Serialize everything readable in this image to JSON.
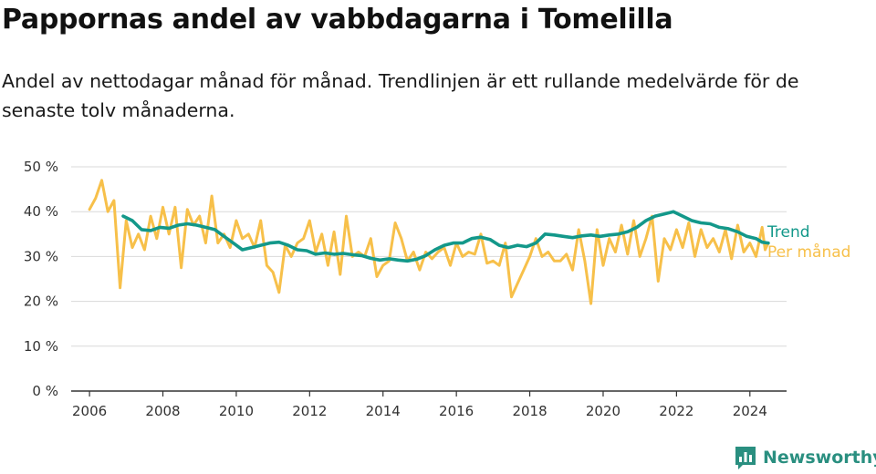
{
  "title": "Pappornas andel av vabbdagarna i Tomelilla",
  "subtitle": "Andel av nettodagar månad för månad. Trendlinjen är ett rullande medelvärde för de senaste tolv månaderna.",
  "brand": {
    "name": "Newsworthy",
    "logo_icon": "bar-chart-speech-bubble-icon",
    "color": "#2a8f80"
  },
  "chart_data": {
    "type": "line",
    "xlabel": "",
    "ylabel": "",
    "x_ticks": [
      "2006",
      "2008",
      "2010",
      "2012",
      "2014",
      "2016",
      "2018",
      "2020",
      "2022",
      "2024"
    ],
    "y_ticks": [
      "0 %",
      "10 %",
      "20 %",
      "30 %",
      "40 %",
      "50 %"
    ],
    "ylim": [
      0,
      50
    ],
    "xlim": [
      "2005-07",
      "2025-01"
    ],
    "grid": true,
    "legend": "labels at right end of lines",
    "series": [
      {
        "name": "Per månad",
        "color": "#f7c04a",
        "points": [
          [
            "2006-01",
            40.5
          ],
          [
            "2006-03",
            43
          ],
          [
            "2006-05",
            47
          ],
          [
            "2006-07",
            40
          ],
          [
            "2006-09",
            42.5
          ],
          [
            "2006-11",
            23
          ],
          [
            "2007-01",
            38
          ],
          [
            "2007-03",
            32
          ],
          [
            "2007-05",
            35
          ],
          [
            "2007-07",
            31.5
          ],
          [
            "2007-09",
            39
          ],
          [
            "2007-11",
            34
          ],
          [
            "2008-01",
            41
          ],
          [
            "2008-03",
            35
          ],
          [
            "2008-05",
            41
          ],
          [
            "2008-07",
            27.5
          ],
          [
            "2008-09",
            40.5
          ],
          [
            "2008-11",
            37
          ],
          [
            "2009-01",
            39
          ],
          [
            "2009-03",
            33
          ],
          [
            "2009-05",
            43.5
          ],
          [
            "2009-07",
            33
          ],
          [
            "2009-09",
            35
          ],
          [
            "2009-11",
            32
          ],
          [
            "2010-01",
            38
          ],
          [
            "2010-03",
            34
          ],
          [
            "2010-05",
            35
          ],
          [
            "2010-07",
            32
          ],
          [
            "2010-09",
            38
          ],
          [
            "2010-11",
            28
          ],
          [
            "2011-01",
            26.5
          ],
          [
            "2011-03",
            22
          ],
          [
            "2011-05",
            32.5
          ],
          [
            "2011-07",
            30
          ],
          [
            "2011-09",
            33
          ],
          [
            "2011-11",
            34
          ],
          [
            "2012-01",
            38
          ],
          [
            "2012-03",
            31
          ],
          [
            "2012-05",
            35
          ],
          [
            "2012-07",
            28
          ],
          [
            "2012-09",
            35.5
          ],
          [
            "2012-11",
            26
          ],
          [
            "2013-01",
            39
          ],
          [
            "2013-03",
            30
          ],
          [
            "2013-05",
            31
          ],
          [
            "2013-07",
            30
          ],
          [
            "2013-09",
            34
          ],
          [
            "2013-11",
            25.5
          ],
          [
            "2014-01",
            28
          ],
          [
            "2014-03",
            29
          ],
          [
            "2014-05",
            37.5
          ],
          [
            "2014-07",
            34
          ],
          [
            "2014-09",
            29
          ],
          [
            "2014-11",
            31
          ],
          [
            "2015-01",
            27
          ],
          [
            "2015-03",
            31
          ],
          [
            "2015-05",
            29.5
          ],
          [
            "2015-07",
            31
          ],
          [
            "2015-09",
            32
          ],
          [
            "2015-11",
            28
          ],
          [
            "2016-01",
            33
          ],
          [
            "2016-03",
            30
          ],
          [
            "2016-05",
            31
          ],
          [
            "2016-07",
            30.5
          ],
          [
            "2016-09",
            35
          ],
          [
            "2016-11",
            28.5
          ],
          [
            "2017-01",
            29
          ],
          [
            "2017-03",
            28
          ],
          [
            "2017-05",
            33
          ],
          [
            "2017-07",
            21
          ],
          [
            "2017-09",
            24
          ],
          [
            "2017-11",
            27
          ],
          [
            "2018-01",
            30
          ],
          [
            "2018-03",
            34
          ],
          [
            "2018-05",
            30
          ],
          [
            "2018-07",
            31
          ],
          [
            "2018-09",
            29
          ],
          [
            "2018-11",
            29
          ],
          [
            "2019-01",
            30.5
          ],
          [
            "2019-03",
            27
          ],
          [
            "2019-05",
            36
          ],
          [
            "2019-07",
            29
          ],
          [
            "2019-09",
            19.5
          ],
          [
            "2019-11",
            36
          ],
          [
            "2020-01",
            28
          ],
          [
            "2020-03",
            34
          ],
          [
            "2020-05",
            31
          ],
          [
            "2020-07",
            37
          ],
          [
            "2020-09",
            30.5
          ],
          [
            "2020-11",
            38
          ],
          [
            "2021-01",
            30
          ],
          [
            "2021-03",
            34
          ],
          [
            "2021-05",
            39
          ],
          [
            "2021-07",
            24.5
          ],
          [
            "2021-09",
            34
          ],
          [
            "2021-11",
            31.5
          ],
          [
            "2022-01",
            36
          ],
          [
            "2022-03",
            32
          ],
          [
            "2022-05",
            37.5
          ],
          [
            "2022-07",
            30
          ],
          [
            "2022-09",
            36
          ],
          [
            "2022-11",
            32
          ],
          [
            "2023-01",
            34
          ],
          [
            "2023-03",
            31
          ],
          [
            "2023-05",
            36
          ],
          [
            "2023-07",
            29.5
          ],
          [
            "2023-09",
            37
          ],
          [
            "2023-11",
            31
          ],
          [
            "2024-01",
            33
          ],
          [
            "2024-03",
            30
          ],
          [
            "2024-05",
            36.5
          ],
          [
            "2024-06",
            31.5
          ],
          [
            "2024-07",
            33
          ]
        ]
      },
      {
        "name": "Trend",
        "color": "#13988a",
        "points": [
          [
            "2006-12",
            39
          ],
          [
            "2007-03",
            38
          ],
          [
            "2007-06",
            36
          ],
          [
            "2007-09",
            35.8
          ],
          [
            "2007-12",
            36.5
          ],
          [
            "2008-03",
            36.3
          ],
          [
            "2008-06",
            37
          ],
          [
            "2008-09",
            37.3
          ],
          [
            "2008-12",
            37
          ],
          [
            "2009-03",
            36.5
          ],
          [
            "2009-06",
            36
          ],
          [
            "2009-09",
            34.5
          ],
          [
            "2009-12",
            33
          ],
          [
            "2010-03",
            31.5
          ],
          [
            "2010-06",
            32
          ],
          [
            "2010-09",
            32.5
          ],
          [
            "2010-12",
            33
          ],
          [
            "2011-03",
            33.2
          ],
          [
            "2011-06",
            32.5
          ],
          [
            "2011-09",
            31.5
          ],
          [
            "2011-12",
            31.3
          ],
          [
            "2012-03",
            30.5
          ],
          [
            "2012-06",
            30.8
          ],
          [
            "2012-09",
            30.5
          ],
          [
            "2012-12",
            30.7
          ],
          [
            "2013-03",
            30.4
          ],
          [
            "2013-06",
            30.2
          ],
          [
            "2013-09",
            29.6
          ],
          [
            "2013-12",
            29.2
          ],
          [
            "2014-03",
            29.5
          ],
          [
            "2014-06",
            29.2
          ],
          [
            "2014-09",
            29.0
          ],
          [
            "2014-12",
            29.4
          ],
          [
            "2015-03",
            30.2
          ],
          [
            "2015-06",
            31.5
          ],
          [
            "2015-09",
            32.5
          ],
          [
            "2015-12",
            33.0
          ],
          [
            "2016-03",
            33.0
          ],
          [
            "2016-06",
            34.0
          ],
          [
            "2016-09",
            34.3
          ],
          [
            "2016-12",
            33.8
          ],
          [
            "2017-03",
            32.5
          ],
          [
            "2017-06",
            32.0
          ],
          [
            "2017-09",
            32.5
          ],
          [
            "2017-12",
            32.2
          ],
          [
            "2018-03",
            33.0
          ],
          [
            "2018-06",
            35.0
          ],
          [
            "2018-09",
            34.8
          ],
          [
            "2018-12",
            34.5
          ],
          [
            "2019-03",
            34.2
          ],
          [
            "2019-06",
            34.6
          ],
          [
            "2019-09",
            34.8
          ],
          [
            "2019-12",
            34.5
          ],
          [
            "2020-03",
            34.8
          ],
          [
            "2020-06",
            35.0
          ],
          [
            "2020-09",
            35.5
          ],
          [
            "2020-12",
            36.5
          ],
          [
            "2021-03",
            38.0
          ],
          [
            "2021-06",
            39.0
          ],
          [
            "2021-09",
            39.5
          ],
          [
            "2021-12",
            40.0
          ],
          [
            "2022-03",
            39.0
          ],
          [
            "2022-06",
            38.0
          ],
          [
            "2022-09",
            37.5
          ],
          [
            "2022-12",
            37.3
          ],
          [
            "2023-03",
            36.5
          ],
          [
            "2023-06",
            36.2
          ],
          [
            "2023-09",
            35.5
          ],
          [
            "2023-12",
            34.5
          ],
          [
            "2024-03",
            34.0
          ],
          [
            "2024-05",
            33.2
          ],
          [
            "2024-07",
            33.0
          ]
        ]
      }
    ]
  }
}
